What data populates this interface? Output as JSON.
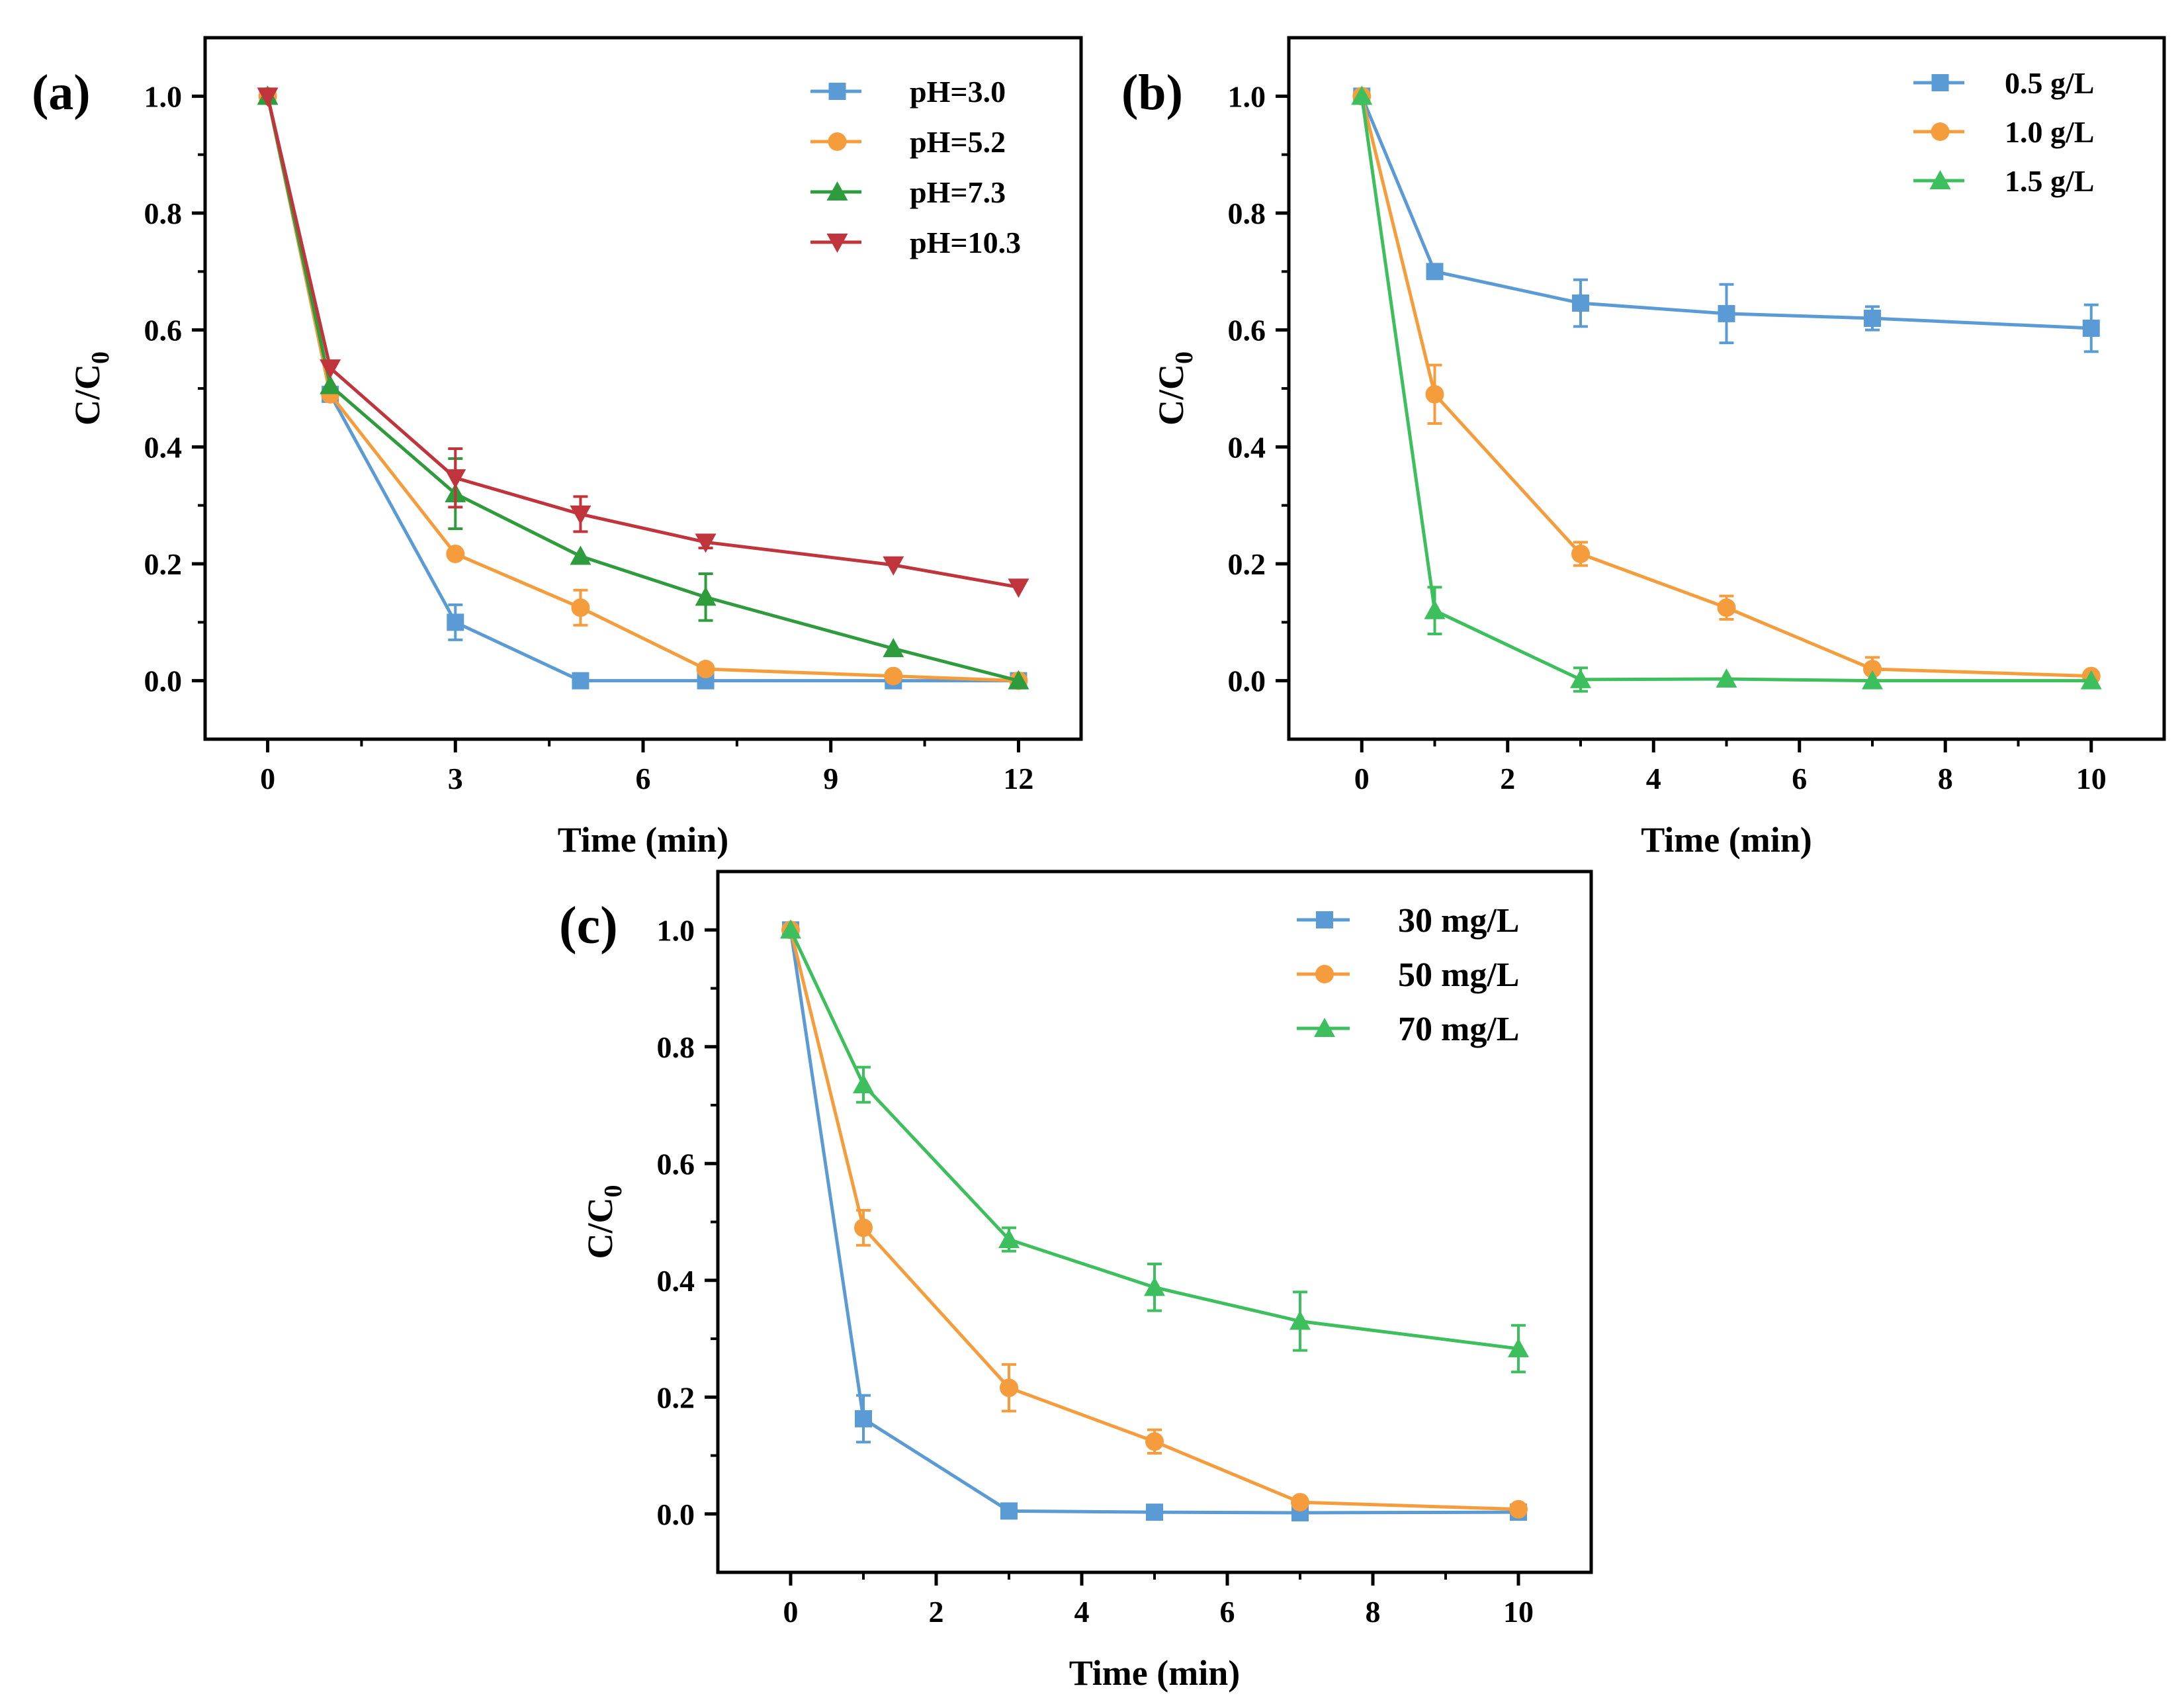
{
  "chart_data": [
    {
      "panel_label": "(a)",
      "type": "line",
      "xlabel": "Time (min)",
      "ylabel": "C/C",
      "ylabel_sub": "0",
      "xlim": [
        -1,
        13
      ],
      "ylim": [
        -0.1,
        1.1
      ],
      "xticks": [
        0,
        3,
        6,
        9,
        12
      ],
      "xtick_labels": [
        "0",
        "3",
        "6",
        "9",
        "12"
      ],
      "yticks": [
        0.0,
        0.2,
        0.4,
        0.6,
        0.8,
        1.0
      ],
      "ytick_labels": [
        "0.0",
        "0.2",
        "0.4",
        "0.6",
        "0.8",
        "1.0"
      ],
      "legend_position": "top-right",
      "series": [
        {
          "name": "pH=3.0",
          "color": "#5b9bd5",
          "marker": "square",
          "x": [
            0,
            1,
            3,
            5,
            7,
            10,
            12
          ],
          "y": [
            1.0,
            0.49,
            0.1,
            0.0,
            0.0,
            0.0,
            0.0
          ],
          "err": [
            0,
            0,
            0.03,
            0,
            0,
            0,
            0
          ]
        },
        {
          "name": "pH=5.2",
          "color": "#f59c3c",
          "marker": "circle",
          "x": [
            0,
            1,
            3,
            5,
            7,
            10,
            12
          ],
          "y": [
            1.0,
            0.49,
            0.217,
            0.125,
            0.02,
            0.008,
            0.0
          ],
          "err": [
            0,
            0,
            0,
            0.03,
            0,
            0,
            0
          ]
        },
        {
          "name": "pH=7.3",
          "color": "#2e9b3c",
          "marker": "triangle-up",
          "x": [
            0,
            1,
            3,
            5,
            7,
            10,
            12
          ],
          "y": [
            1.0,
            0.505,
            0.32,
            0.213,
            0.143,
            0.055,
            0.0
          ],
          "err": [
            0,
            0,
            0.06,
            0,
            0.04,
            0,
            0
          ]
        },
        {
          "name": "pH=10.3",
          "color": "#c0343b",
          "marker": "triangle-down",
          "x": [
            0,
            1,
            3,
            5,
            7,
            10,
            12
          ],
          "y": [
            1.0,
            0.535,
            0.347,
            0.285,
            0.237,
            0.198,
            0.16
          ],
          "err": [
            0,
            0,
            0.05,
            0.03,
            0.01,
            0,
            0
          ]
        }
      ]
    },
    {
      "panel_label": "(b)",
      "type": "line",
      "xlabel": "Time (min)",
      "ylabel": "C/C",
      "ylabel_sub": "0",
      "xlim": [
        -1,
        11
      ],
      "ylim": [
        -0.1,
        1.1
      ],
      "xticks": [
        0,
        2,
        4,
        6,
        8,
        10
      ],
      "xtick_labels": [
        "0",
        "2",
        "4",
        "6",
        "8",
        "10"
      ],
      "yticks": [
        0.0,
        0.2,
        0.4,
        0.6,
        0.8,
        1.0
      ],
      "ytick_labels": [
        "0.0",
        "0.2",
        "0.4",
        "0.6",
        "0.8",
        "1.0"
      ],
      "legend_position": "top-right",
      "series": [
        {
          "name": "0.5 g/L",
          "color": "#5b9bd5",
          "marker": "square",
          "x": [
            0,
            1,
            3,
            5,
            7,
            10
          ],
          "y": [
            1.0,
            0.7,
            0.646,
            0.628,
            0.62,
            0.603
          ],
          "err": [
            0,
            0,
            0.04,
            0.05,
            0.02,
            0.04
          ]
        },
        {
          "name": "1.0 g/L",
          "color": "#f59c3c",
          "marker": "circle",
          "x": [
            0,
            1,
            3,
            5,
            7,
            10
          ],
          "y": [
            1.0,
            0.49,
            0.217,
            0.125,
            0.02,
            0.008
          ],
          "err": [
            0,
            0.05,
            0.02,
            0.02,
            0.02,
            0
          ]
        },
        {
          "name": "1.5 g/L",
          "color": "#3cbf5c",
          "marker": "triangle-up",
          "x": [
            0,
            1,
            3,
            5,
            7,
            10
          ],
          "y": [
            1.0,
            0.12,
            0.002,
            0.003,
            0.0,
            0.0
          ],
          "err": [
            0,
            0.04,
            0.02,
            0,
            0,
            0
          ]
        }
      ]
    },
    {
      "panel_label": "(c)",
      "type": "line",
      "xlabel": "Time (min)",
      "ylabel": "C/C",
      "ylabel_sub": "0",
      "xlim": [
        -1,
        11
      ],
      "ylim": [
        -0.1,
        1.1
      ],
      "xticks": [
        0,
        2,
        4,
        6,
        8,
        10
      ],
      "xtick_labels": [
        "0",
        "2",
        "4",
        "6",
        "8",
        "10"
      ],
      "yticks": [
        0.0,
        0.2,
        0.4,
        0.6,
        0.8,
        1.0
      ],
      "ytick_labels": [
        "0.0",
        "0.2",
        "0.4",
        "0.6",
        "0.8",
        "1.0"
      ],
      "legend_position": "top-right",
      "series": [
        {
          "name": "30 mg/L",
          "color": "#5b9bd5",
          "marker": "square",
          "x": [
            0,
            1,
            3,
            5,
            7,
            10
          ],
          "y": [
            1.0,
            0.163,
            0.005,
            0.003,
            0.002,
            0.003
          ],
          "err": [
            0,
            0.04,
            0,
            0,
            0,
            0
          ]
        },
        {
          "name": "50 mg/L",
          "color": "#f59c3c",
          "marker": "circle",
          "x": [
            0,
            1,
            3,
            5,
            7,
            10
          ],
          "y": [
            1.0,
            0.49,
            0.216,
            0.124,
            0.02,
            0.008
          ],
          "err": [
            0,
            0.03,
            0.04,
            0.02,
            0,
            0
          ]
        },
        {
          "name": "70 mg/L",
          "color": "#3cbf5c",
          "marker": "triangle-up",
          "x": [
            0,
            1,
            3,
            5,
            7,
            10
          ],
          "y": [
            1.0,
            0.735,
            0.47,
            0.388,
            0.33,
            0.283
          ],
          "err": [
            0,
            0.03,
            0.02,
            0.04,
            0.05,
            0.04
          ]
        }
      ]
    }
  ]
}
